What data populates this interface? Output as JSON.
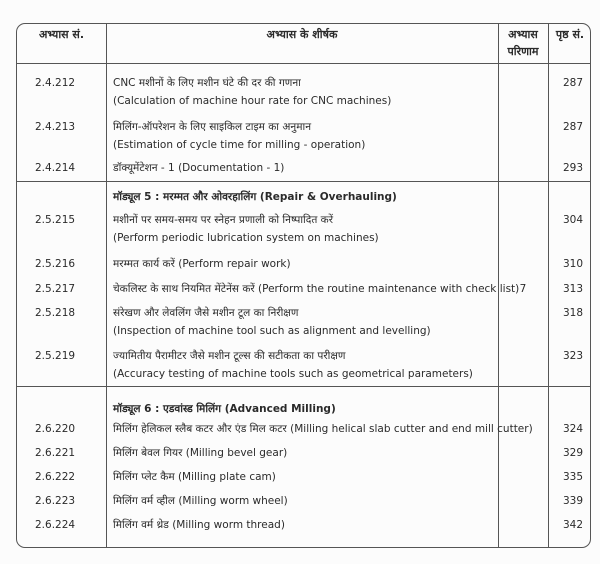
{
  "header": {
    "col_number": "अभ्यास सं.",
    "col_title": "अभ्यास के शीर्षक",
    "col_outcome_line1": "अभ्यास",
    "col_outcome_line2": "परिणाम",
    "col_page": "पृष्ठ सं."
  },
  "sections": [
    {
      "heading": "",
      "rows": [
        {
          "number": "2.4.212",
          "title_hi": "CNC मशीनों के लिए मशीन घंटे की दर की गणना",
          "title_en": "(Calculation of machine hour rate for CNC machines)",
          "page": "287"
        },
        {
          "number": "2.4.213",
          "title_hi": "मिलिंग-ऑपरेशन के लिए साइकिल टाइम का अनुमान",
          "title_en": "(Estimation of cycle time for milling - operation)",
          "page": "287"
        },
        {
          "number": "2.4.214",
          "title_hi": "डॉक्यूमेंटेशन - 1 (Documentation - 1)",
          "title_en": "",
          "page": "293"
        }
      ]
    },
    {
      "heading": "मॉड्यूल 5 : मरम्मत और ओवरहालिंग (Repair & Overhauling)",
      "rows": [
        {
          "number": "2.5.215",
          "title_hi": "मशीनों पर समय-समय पर स्नेहन प्रणाली को निष्पादित करें",
          "title_en": "(Perform periodic lubrication system on machines)",
          "page": "304"
        },
        {
          "number": "2.5.216",
          "title_hi": "मरम्मत कार्य करें (Perform repair work)",
          "title_en": "",
          "page": "310"
        },
        {
          "number": "2.5.217",
          "title_hi": "चेकलिस्ट के साथ नियमित मेंटेनेंस करें (Perform the routine maintenance with check list)",
          "title_en": "",
          "page": "313",
          "outcome": "7"
        },
        {
          "number": "2.5.218",
          "title_hi": "संरेखण और लेवलिंग जैसे मशीन टूल का निरीक्षण",
          "title_en": "(Inspection of machine tool such as alignment and levelling)",
          "page": "318"
        },
        {
          "number": "2.5.219",
          "title_hi": "ज्यामितीय पैरामीटर जैसे मशीन टूल्स की सटीकता का परीक्षण",
          "title_en": "(Accuracy testing of machine tools such as geometrical parameters)",
          "page": "323"
        }
      ]
    },
    {
      "heading": "मॉड्यूल 6 : एडवांस्ड मिलिंग (Advanced Milling)",
      "rows": [
        {
          "number": "2.6.220",
          "title_hi": "मिलिंग हेलिकल स्लैब कटर और एंड मिल कटर (Milling helical slab cutter and end mill cutter)",
          "title_en": "",
          "page": "324"
        },
        {
          "number": "2.6.221",
          "title_hi": "मिलिंग बेवल गियर (Milling bevel gear)",
          "title_en": "",
          "page": "329"
        },
        {
          "number": "2.6.222",
          "title_hi": "मिलिंग प्लेट कैम (Milling plate cam)",
          "title_en": "",
          "page": "335"
        },
        {
          "number": "2.6.223",
          "title_hi": "मिलिंग वर्म व्हील (Milling worm wheel)",
          "title_en": "",
          "page": "339"
        },
        {
          "number": "2.6.224",
          "title_hi": "मिलिंग वर्म थ्रेड (Milling worm thread)",
          "title_en": "",
          "page": "342"
        }
      ]
    }
  ]
}
